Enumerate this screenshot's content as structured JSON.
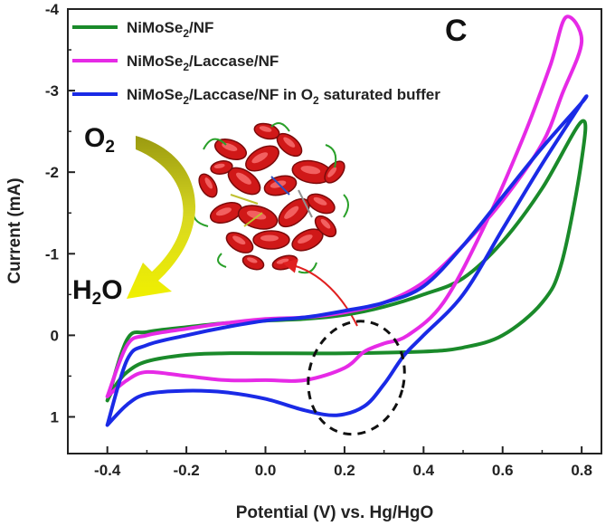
{
  "chart_data": {
    "type": "line",
    "panel_label": "C",
    "xlabel": "Potential (V) vs. Hg/HgO",
    "ylabel": "Current (mA)",
    "xlim": [
      -0.5,
      0.85
    ],
    "ylim": [
      1.45,
      -4.0
    ],
    "x_ticks": [
      -0.4,
      -0.2,
      0.0,
      0.2,
      0.4,
      0.6,
      0.8
    ],
    "x_tick_labels": [
      "-0.4",
      "-0.2",
      "0.0",
      "0.2",
      "0.4",
      "0.6",
      "0.8"
    ],
    "y_ticks": [
      -4,
      -3,
      -2,
      -1,
      0,
      1
    ],
    "y_tick_labels": [
      "-4",
      "-3",
      "-2",
      "-1",
      "0",
      "1"
    ],
    "legend_position": "top-left",
    "grid": false,
    "series": [
      {
        "name": "NiMoSe2/NF",
        "legend": {
          "base": "NiMoSe",
          "sub": "2",
          "rest": "/NF"
        },
        "color": "#1a8a2a",
        "points": [
          [
            -0.4,
            0.8
          ],
          [
            -0.38,
            0.62
          ],
          [
            -0.35,
            0.45
          ],
          [
            -0.3,
            0.32
          ],
          [
            -0.2,
            0.24
          ],
          [
            -0.1,
            0.22
          ],
          [
            0.0,
            0.22
          ],
          [
            0.2,
            0.22
          ],
          [
            0.4,
            0.2
          ],
          [
            0.5,
            0.15
          ],
          [
            0.6,
            0.0
          ],
          [
            0.7,
            -0.4
          ],
          [
            0.75,
            -0.9
          ],
          [
            0.8,
            -2.15
          ],
          [
            0.8,
            -2.62
          ],
          [
            0.7,
            -1.8
          ],
          [
            0.6,
            -1.15
          ],
          [
            0.5,
            -0.7
          ],
          [
            0.4,
            -0.5
          ],
          [
            0.3,
            -0.35
          ],
          [
            0.2,
            -0.25
          ],
          [
            0.1,
            -0.2
          ],
          [
            0.0,
            -0.18
          ],
          [
            -0.1,
            -0.15
          ],
          [
            -0.2,
            -0.1
          ],
          [
            -0.3,
            -0.04
          ],
          [
            -0.35,
            0.05
          ],
          [
            -0.4,
            0.8
          ]
        ]
      },
      {
        "name": "NiMoSe2/Laccase/NF",
        "legend": {
          "base": "NiMoSe",
          "sub": "2",
          "rest": "/Laccase/NF"
        },
        "color": "#e62ae6",
        "points": [
          [
            -0.4,
            0.75
          ],
          [
            -0.35,
            0.55
          ],
          [
            -0.3,
            0.45
          ],
          [
            -0.2,
            0.5
          ],
          [
            -0.1,
            0.55
          ],
          [
            0.0,
            0.55
          ],
          [
            0.1,
            0.55
          ],
          [
            0.2,
            0.4
          ],
          [
            0.25,
            0.2
          ],
          [
            0.3,
            0.1
          ],
          [
            0.36,
            0.0
          ],
          [
            0.45,
            -0.4
          ],
          [
            0.55,
            -1.3
          ],
          [
            0.65,
            -2.4
          ],
          [
            0.72,
            -3.3
          ],
          [
            0.76,
            -3.9
          ],
          [
            0.8,
            -3.6
          ],
          [
            0.75,
            -2.95
          ],
          [
            0.7,
            -2.35
          ],
          [
            0.6,
            -1.65
          ],
          [
            0.5,
            -1.1
          ],
          [
            0.4,
            -0.65
          ],
          [
            0.3,
            -0.4
          ],
          [
            0.2,
            -0.28
          ],
          [
            0.1,
            -0.22
          ],
          [
            0.0,
            -0.2
          ],
          [
            -0.1,
            -0.15
          ],
          [
            -0.2,
            -0.08
          ],
          [
            -0.3,
            0.0
          ],
          [
            -0.35,
            0.12
          ],
          [
            -0.4,
            0.75
          ]
        ]
      },
      {
        "name": "NiMoSe2/Laccase/NF in O2 saturated buffer",
        "legend": {
          "base": "NiMoSe",
          "sub": "2",
          "rest": "/Laccase/NF in O",
          "sub2": "2",
          "rest2": " saturated buffer"
        },
        "color": "#1a2ae6",
        "points": [
          [
            -0.4,
            1.1
          ],
          [
            -0.35,
            0.85
          ],
          [
            -0.3,
            0.72
          ],
          [
            -0.2,
            0.68
          ],
          [
            -0.1,
            0.7
          ],
          [
            0.0,
            0.78
          ],
          [
            0.1,
            0.92
          ],
          [
            0.18,
            0.98
          ],
          [
            0.25,
            0.87
          ],
          [
            0.3,
            0.6
          ],
          [
            0.35,
            0.25
          ],
          [
            0.4,
            0.0
          ],
          [
            0.5,
            -0.5
          ],
          [
            0.6,
            -1.3
          ],
          [
            0.7,
            -2.1
          ],
          [
            0.8,
            -2.85
          ],
          [
            0.8,
            -2.85
          ],
          [
            0.7,
            -2.3
          ],
          [
            0.6,
            -1.7
          ],
          [
            0.5,
            -1.1
          ],
          [
            0.4,
            -0.6
          ],
          [
            0.3,
            -0.4
          ],
          [
            0.2,
            -0.3
          ],
          [
            0.1,
            -0.22
          ],
          [
            0.0,
            -0.18
          ],
          [
            -0.1,
            -0.1
          ],
          [
            -0.2,
            0.0
          ],
          [
            -0.3,
            0.12
          ],
          [
            -0.35,
            0.3
          ],
          [
            -0.4,
            1.1
          ]
        ]
      }
    ],
    "annotations": [
      {
        "kind": "label",
        "text": "O",
        "sub": "2"
      },
      {
        "kind": "label",
        "text": "H",
        "sub": "2",
        "rest": "O"
      },
      {
        "kind": "dashed-ellipse",
        "cx": 0.23,
        "cy": 0.52,
        "rx_data": 0.12,
        "ry_data": 0.7,
        "angle": 15
      },
      {
        "kind": "enzyme-inset"
      }
    ]
  }
}
